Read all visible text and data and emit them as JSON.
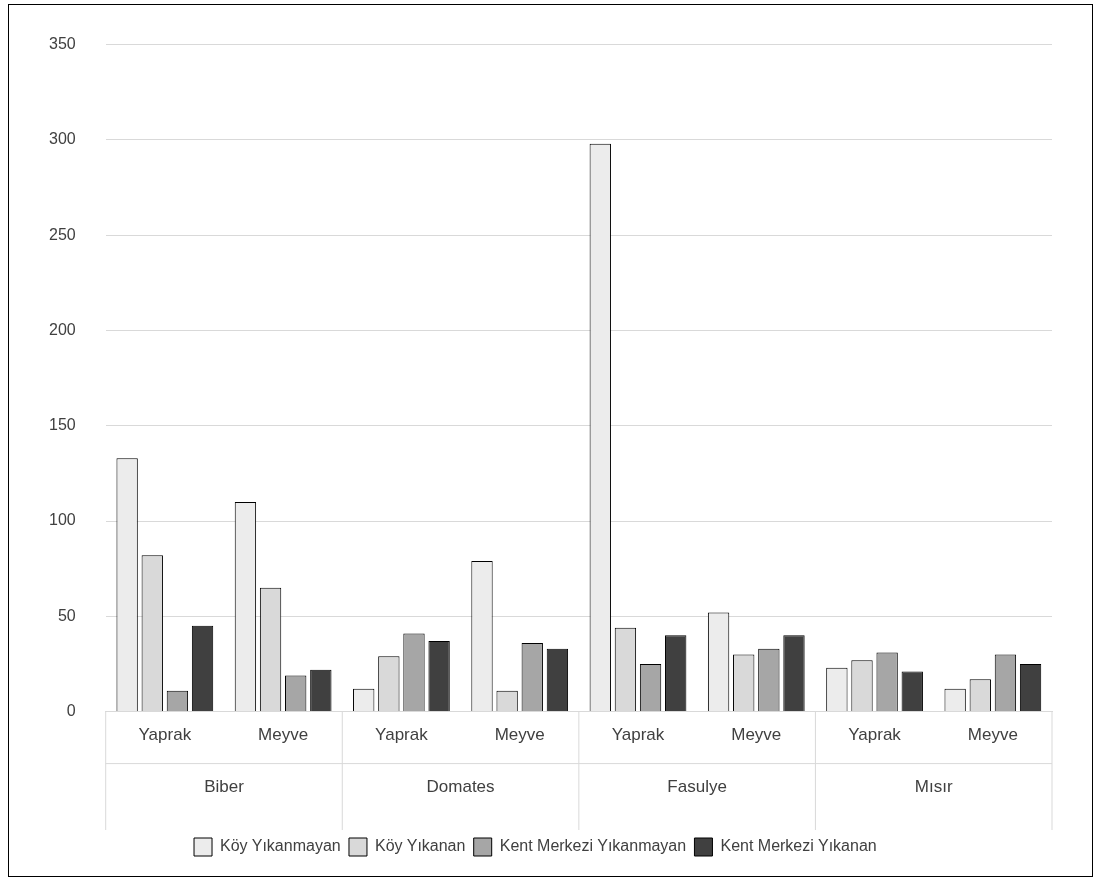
{
  "chart_data": {
    "type": "bar",
    "categories": [
      "Yaprak",
      "Meyve",
      "Yaprak",
      "Meyve",
      "Yaprak",
      "Meyve",
      "Yaprak",
      "Meyve"
    ],
    "annotations": [
      "Biber",
      "Domates",
      "Fasulye",
      "Mısır"
    ],
    "series": [
      {
        "name": "Köy Yıkanmayan",
        "color": "#ececec",
        "values": [
          133,
          110,
          12,
          79,
          298,
          52,
          23,
          12
        ]
      },
      {
        "name": "Köy Yıkanan",
        "color": "#d9d9d9",
        "values": [
          82,
          65,
          29,
          11,
          44,
          30,
          27,
          17
        ]
      },
      {
        "name": "Kent Merkezi Yıkanmayan",
        "color": "#a6a6a6",
        "values": [
          11,
          19,
          41,
          36,
          25,
          33,
          31,
          30
        ]
      },
      {
        "name": "Kent Merkezi Yıkanan",
        "color": "#404040",
        "values": [
          45,
          22,
          37,
          33,
          40,
          40,
          21,
          25
        ]
      }
    ],
    "ylim": [
      0,
      350
    ],
    "yticks": [
      0,
      50,
      100,
      150,
      200,
      250,
      300,
      350
    ],
    "grid": "y",
    "legend": "bottom"
  }
}
